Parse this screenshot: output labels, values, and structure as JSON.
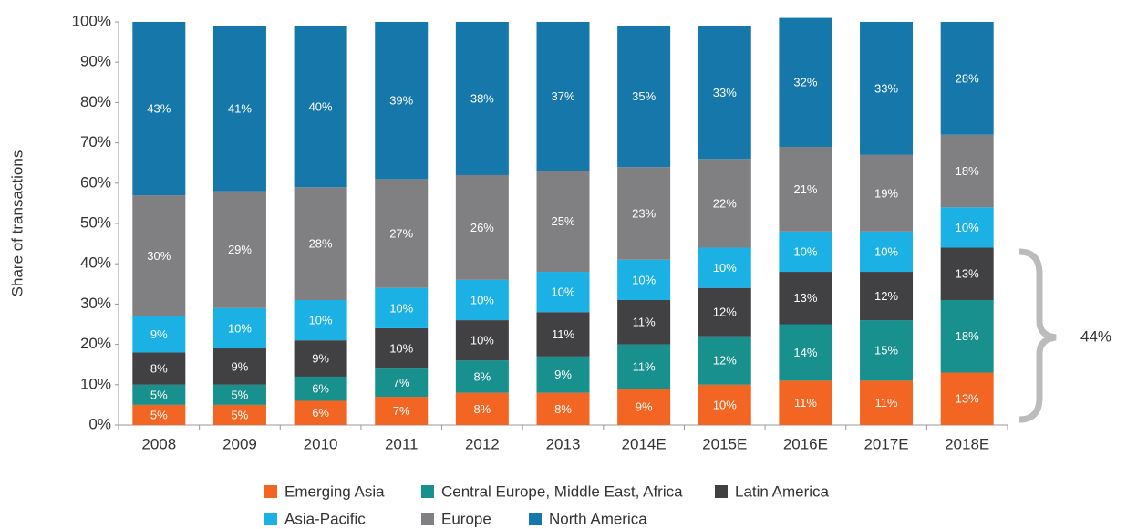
{
  "chart_data": {
    "type": "stacked_bar",
    "y_label": "Share of transactions",
    "annotation": "44%",
    "categories": [
      "2008",
      "2009",
      "2010",
      "2011",
      "2012",
      "2013",
      "2014E",
      "2015E",
      "2016E",
      "2017E",
      "2018E"
    ],
    "ylim": [
      0,
      100
    ],
    "yticks": [
      {
        "value": 0,
        "label": "0%"
      },
      {
        "value": 10,
        "label": "10%"
      },
      {
        "value": 20,
        "label": "20%"
      },
      {
        "value": 30,
        "label": "30%"
      },
      {
        "value": 40,
        "label": "40%"
      },
      {
        "value": 50,
        "label": "50%"
      },
      {
        "value": 60,
        "label": "60%"
      },
      {
        "value": 70,
        "label": "70%"
      },
      {
        "value": 80,
        "label": "80%"
      },
      {
        "value": 90,
        "label": "90%"
      },
      {
        "value": 100,
        "label": "100%"
      }
    ],
    "series": [
      {
        "name": "Emerging Asia",
        "color": "#f26522",
        "values": [
          5,
          5,
          6,
          7,
          8,
          8,
          9,
          10,
          11,
          11,
          13
        ],
        "value_labels": [
          "5%",
          "5%",
          "6%",
          "7%",
          "8%",
          "8%",
          "9%",
          "10%",
          "11%",
          "11%",
          "13%"
        ]
      },
      {
        "name": "Central Europe, Middle East, Africa",
        "color": "#17908e",
        "values": [
          5,
          5,
          6,
          7,
          8,
          9,
          11,
          12,
          14,
          15,
          18
        ],
        "value_labels": [
          "5%",
          "5%",
          "6%",
          "7%",
          "8%",
          "9%",
          "11%",
          "12%",
          "14%",
          "15%",
          "18%"
        ]
      },
      {
        "name": "Latin America",
        "color": "#414042",
        "values": [
          8,
          9,
          9,
          10,
          10,
          11,
          11,
          12,
          13,
          12,
          13
        ],
        "value_labels": [
          "8%",
          "9%",
          "9%",
          "10%",
          "10%",
          "11%",
          "11%",
          "12%",
          "13%",
          "12%",
          "13%"
        ]
      },
      {
        "name": "Asia-Pacific",
        "color": "#1cb1e4",
        "values": [
          9,
          10,
          10,
          10,
          10,
          10,
          10,
          10,
          10,
          10,
          10
        ],
        "value_labels": [
          "9%",
          "10%",
          "10%",
          "10%",
          "10%",
          "10%",
          "10%",
          "10%",
          "10%",
          "10%",
          "10%"
        ]
      },
      {
        "name": "Europe",
        "color": "#808082",
        "values": [
          30,
          29,
          28,
          27,
          26,
          25,
          23,
          22,
          21,
          19,
          18
        ],
        "value_labels": [
          "30%",
          "29%",
          "28%",
          "27%",
          "26%",
          "25%",
          "23%",
          "22%",
          "21%",
          "19%",
          "18%"
        ]
      },
      {
        "name": "North America",
        "color": "#1677aa",
        "values": [
          43,
          41,
          40,
          39,
          38,
          37,
          35,
          33,
          32,
          33,
          28
        ],
        "value_labels": [
          "43%",
          "41%",
          "40%",
          "39%",
          "38%",
          "37%",
          "35%",
          "33%",
          "32%",
          "33%",
          "28%"
        ]
      }
    ]
  }
}
